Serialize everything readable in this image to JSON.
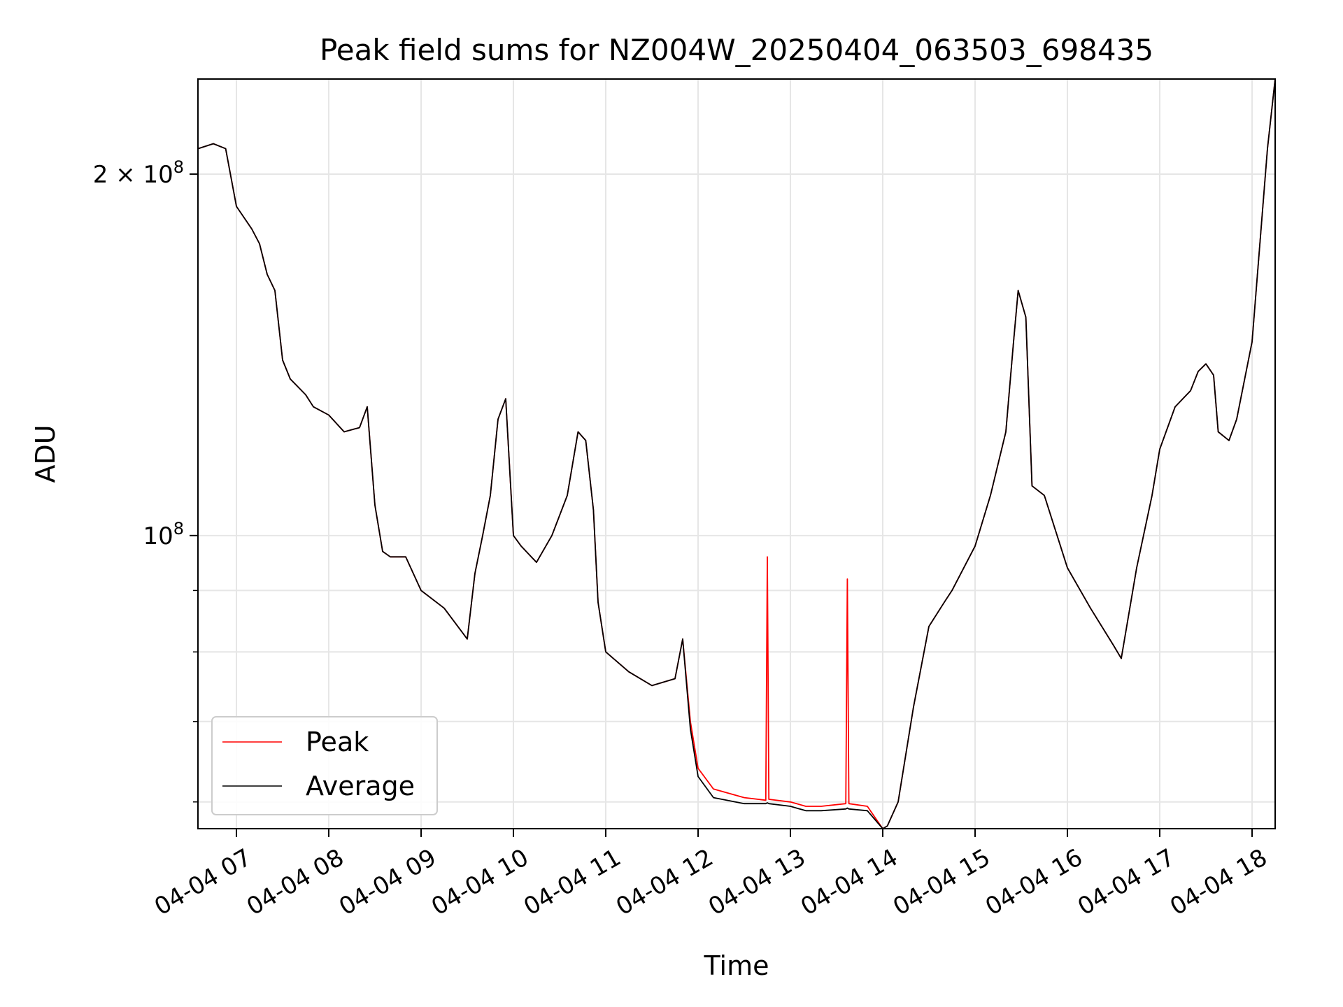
{
  "chart_data": {
    "type": "line",
    "title": "Peak field sums for NZ004W_20250404_063503_698435",
    "xlabel": "Time",
    "ylabel": "ADU",
    "y_scale": "log",
    "ylim": [
      57000000,
      240000000
    ],
    "xlim": [
      "04-04 06:35",
      "04-04 18:15"
    ],
    "x_ticks": [
      "04-04 07",
      "04-04 08",
      "04-04 09",
      "04-04 10",
      "04-04 11",
      "04-04 12",
      "04-04 13",
      "04-04 14",
      "04-04 15",
      "04-04 16",
      "04-04 17",
      "04-04 18"
    ],
    "y_tick_labels": [
      "2 × 10^8",
      "10^8"
    ],
    "y_major_ticks": [
      200000000,
      100000000
    ],
    "y_minor_ticks": [
      60000000,
      70000000,
      80000000,
      90000000
    ],
    "grid": true,
    "legend_position": "lower-left",
    "series": [
      {
        "name": "Peak",
        "color": "#ff0000",
        "x": [
          "04-04 06:35",
          "04-04 06:45",
          "04-04 06:53",
          "04-04 07:00",
          "04-04 07:10",
          "04-04 07:15",
          "04-04 07:20",
          "04-04 07:25",
          "04-04 07:30",
          "04-04 07:35",
          "04-04 07:40",
          "04-04 07:45",
          "04-04 07:50",
          "04-04 08:00",
          "04-04 08:10",
          "04-04 08:20",
          "04-04 08:25",
          "04-04 08:30",
          "04-04 08:35",
          "04-04 08:40",
          "04-04 08:50",
          "04-04 09:00",
          "04-04 09:15",
          "04-04 09:30",
          "04-04 09:35",
          "04-04 09:40",
          "04-04 09:45",
          "04-04 09:50",
          "04-04 09:55",
          "04-04 10:00",
          "04-04 10:05",
          "04-04 10:15",
          "04-04 10:25",
          "04-04 10:35",
          "04-04 10:42",
          "04-04 10:47",
          "04-04 10:52",
          "04-04 10:55",
          "04-04 11:00",
          "04-04 11:15",
          "04-04 11:30",
          "04-04 11:45",
          "04-04 11:50",
          "04-04 11:55",
          "04-04 12:00",
          "04-04 12:10",
          "04-04 12:30",
          "04-04 12:44",
          "04-04 12:45",
          "04-04 12:46",
          "04-04 13:00",
          "04-04 13:10",
          "04-04 13:20",
          "04-04 13:36",
          "04-04 13:37",
          "04-04 13:38",
          "04-04 13:50",
          "04-04 14:00",
          "04-04 14:03",
          "04-04 14:10",
          "04-04 14:20",
          "04-04 14:30",
          "04-04 14:40",
          "04-04 14:45",
          "04-04 15:00",
          "04-04 15:10",
          "04-04 15:20",
          "04-04 15:25",
          "04-04 15:28",
          "04-04 15:33",
          "04-04 15:37",
          "04-04 15:45",
          "04-04 16:00",
          "04-04 16:15",
          "04-04 16:30",
          "04-04 16:35",
          "04-04 16:45",
          "04-04 16:55",
          "04-04 17:00",
          "04-04 17:10",
          "04-04 17:20",
          "04-04 17:25",
          "04-04 17:30",
          "04-04 17:35",
          "04-04 17:38",
          "04-04 17:45",
          "04-04 17:50",
          "04-04 18:00",
          "04-04 18:10",
          "04-04 18:15"
        ],
        "y": [
          210000000,
          212000000,
          210000000,
          188000000,
          180000000,
          175000000,
          165000000,
          160000000,
          140000000,
          135000000,
          133000000,
          131000000,
          128000000,
          126000000,
          122000000,
          123000000,
          128000000,
          106000000,
          97000000,
          96000000,
          96000000,
          90000000,
          87000000,
          82000000,
          93000000,
          100000000,
          108000000,
          125000000,
          130000000,
          100000000,
          98000000,
          95000000,
          100000000,
          108000000,
          122000000,
          120000000,
          105000000,
          88000000,
          80000000,
          77000000,
          75000000,
          76000000,
          82000000,
          70000000,
          64000000,
          61500000,
          60500000,
          60200000,
          96000000,
          60300000,
          60000000,
          59500000,
          59500000,
          59800000,
          92000000,
          59800000,
          59500000,
          57000000,
          57300000,
          60000000,
          72000000,
          84000000,
          88000000,
          90000000,
          98000000,
          108000000,
          122000000,
          145000000,
          160000000,
          152000000,
          110000000,
          108000000,
          94000000,
          87000000,
          81000000,
          79000000,
          94000000,
          108000000,
          118000000,
          128000000,
          132000000,
          137000000,
          139000000,
          136000000,
          122000000,
          120000000,
          125000000,
          145000000,
          210000000,
          240000000
        ]
      },
      {
        "name": "Average",
        "color": "#000000",
        "x": [
          "04-04 06:35",
          "04-04 06:45",
          "04-04 06:53",
          "04-04 07:00",
          "04-04 07:10",
          "04-04 07:15",
          "04-04 07:20",
          "04-04 07:25",
          "04-04 07:30",
          "04-04 07:35",
          "04-04 07:40",
          "04-04 07:45",
          "04-04 07:50",
          "04-04 08:00",
          "04-04 08:10",
          "04-04 08:20",
          "04-04 08:25",
          "04-04 08:30",
          "04-04 08:35",
          "04-04 08:40",
          "04-04 08:50",
          "04-04 09:00",
          "04-04 09:15",
          "04-04 09:30",
          "04-04 09:35",
          "04-04 09:40",
          "04-04 09:45",
          "04-04 09:50",
          "04-04 09:55",
          "04-04 10:00",
          "04-04 10:05",
          "04-04 10:15",
          "04-04 10:25",
          "04-04 10:35",
          "04-04 10:42",
          "04-04 10:47",
          "04-04 10:52",
          "04-04 10:55",
          "04-04 11:00",
          "04-04 11:15",
          "04-04 11:30",
          "04-04 11:45",
          "04-04 11:50",
          "04-04 11:55",
          "04-04 12:00",
          "04-04 12:10",
          "04-04 12:30",
          "04-04 12:44",
          "04-04 12:45",
          "04-04 12:46",
          "04-04 13:00",
          "04-04 13:10",
          "04-04 13:20",
          "04-04 13:36",
          "04-04 13:37",
          "04-04 13:38",
          "04-04 13:50",
          "04-04 14:00",
          "04-04 14:03",
          "04-04 14:10",
          "04-04 14:20",
          "04-04 14:30",
          "04-04 14:40",
          "04-04 14:45",
          "04-04 15:00",
          "04-04 15:10",
          "04-04 15:20",
          "04-04 15:25",
          "04-04 15:28",
          "04-04 15:33",
          "04-04 15:37",
          "04-04 15:45",
          "04-04 16:00",
          "04-04 16:15",
          "04-04 16:30",
          "04-04 16:35",
          "04-04 16:45",
          "04-04 16:55",
          "04-04 17:00",
          "04-04 17:10",
          "04-04 17:20",
          "04-04 17:25",
          "04-04 17:30",
          "04-04 17:35",
          "04-04 17:38",
          "04-04 17:45",
          "04-04 17:50",
          "04-04 18:00",
          "04-04 18:10",
          "04-04 18:15"
        ],
        "y": [
          210000000,
          212000000,
          210000000,
          188000000,
          180000000,
          175000000,
          165000000,
          160000000,
          140000000,
          135000000,
          133000000,
          131000000,
          128000000,
          126000000,
          122000000,
          123000000,
          128000000,
          106000000,
          97000000,
          96000000,
          96000000,
          90000000,
          87000000,
          82000000,
          93000000,
          100000000,
          108000000,
          125000000,
          130000000,
          100000000,
          98000000,
          95000000,
          100000000,
          108000000,
          122000000,
          120000000,
          105000000,
          88000000,
          80000000,
          77000000,
          75000000,
          76000000,
          82000000,
          69000000,
          63000000,
          60500000,
          59800000,
          59800000,
          59900000,
          59800000,
          59500000,
          59000000,
          59000000,
          59200000,
          59300000,
          59200000,
          59000000,
          57000000,
          57300000,
          60000000,
          72000000,
          84000000,
          88000000,
          90000000,
          98000000,
          108000000,
          122000000,
          145000000,
          160000000,
          152000000,
          110000000,
          108000000,
          94000000,
          87000000,
          81000000,
          79000000,
          94000000,
          108000000,
          118000000,
          128000000,
          132000000,
          137000000,
          139000000,
          136000000,
          122000000,
          120000000,
          125000000,
          145000000,
          210000000,
          240000000
        ]
      }
    ]
  }
}
